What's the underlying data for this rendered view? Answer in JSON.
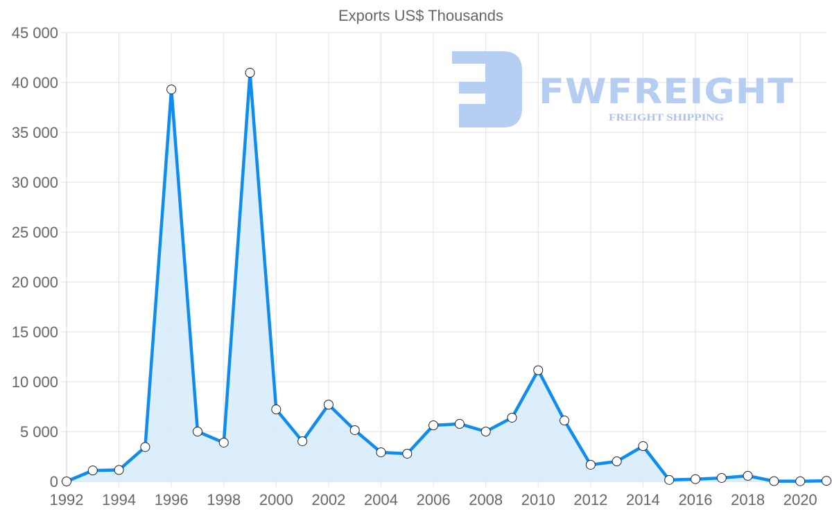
{
  "chart_data": {
    "type": "line",
    "title": "Exports US$ Thousands",
    "xlabel": "",
    "ylabel": "",
    "x": [
      1992,
      1993,
      1994,
      1995,
      1996,
      1997,
      1998,
      1999,
      2000,
      2001,
      2002,
      2003,
      2004,
      2005,
      2006,
      2007,
      2008,
      2009,
      2010,
      2011,
      2012,
      2013,
      2014,
      2015,
      2016,
      2017,
      2018,
      2019,
      2020,
      2021
    ],
    "series": [
      {
        "name": "Exports US$ Thousands",
        "values": [
          0,
          1100,
          1150,
          3450,
          39300,
          5000,
          3890,
          40970,
          7220,
          4030,
          7700,
          5140,
          2920,
          2780,
          5625,
          5770,
          5000,
          6390,
          11150,
          6110,
          1670,
          2010,
          3540,
          150,
          230,
          350,
          560,
          30,
          20,
          60
        ],
        "line_color": "#0f8cf0",
        "fill_color": "#d8ebfc",
        "fill": true,
        "marker": "circle"
      }
    ],
    "x_tick_labels": [
      "1992",
      "1994",
      "1996",
      "1998",
      "2000",
      "2002",
      "2004",
      "2006",
      "2008",
      "2010",
      "2012",
      "2014",
      "2016",
      "2018",
      "2020"
    ],
    "y_tick_labels": [
      "0",
      "5 000",
      "10 000",
      "15 000",
      "20 000",
      "25 000",
      "30 000",
      "35 000",
      "40 000",
      "45 000"
    ],
    "y_ticks": [
      0,
      5000,
      10000,
      15000,
      20000,
      25000,
      30000,
      35000,
      40000,
      45000
    ],
    "ylim": [
      0,
      45000
    ],
    "xlim": [
      1992,
      2021
    ],
    "grid": true,
    "legend": null
  },
  "watermark": {
    "brand": "FWFREIGHT",
    "tagline": "FREIGHT SHIPPING",
    "color": "#a9c4f1"
  },
  "colors": {
    "grid": "#e2e2e2",
    "axis": "#d0d0d0",
    "text": "#666666",
    "marker_fill": "#ffffff",
    "marker_stroke": "#222222"
  }
}
